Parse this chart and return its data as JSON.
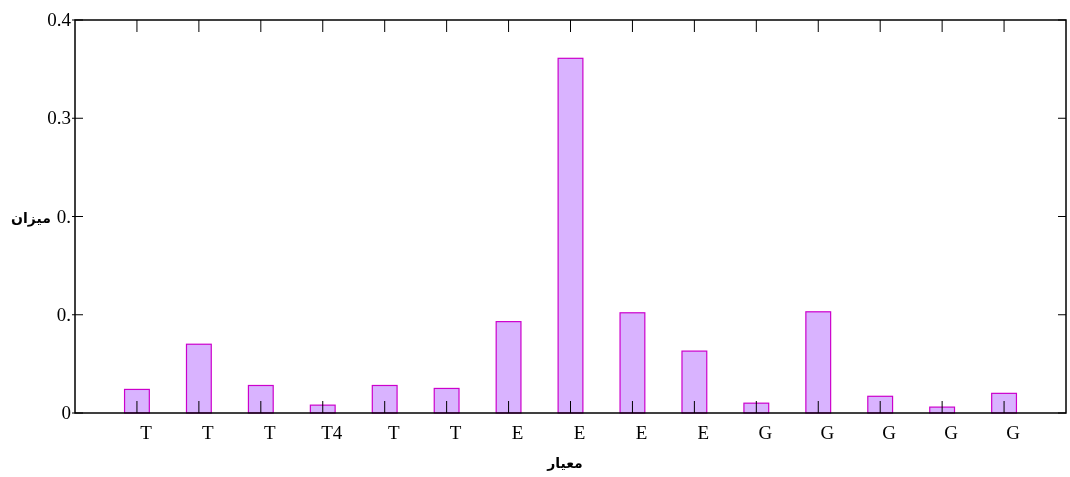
{
  "chart_data": {
    "type": "bar",
    "xlabel": "معیار",
    "ylabel": "میزان",
    "categories": [
      "T",
      "T",
      "T",
      "T4",
      "T",
      "T",
      "E",
      "E",
      "E",
      "E",
      "G",
      "G",
      "G",
      "G",
      "G"
    ],
    "values": [
      0.024,
      0.07,
      0.028,
      0.008,
      0.028,
      0.025,
      0.093,
      0.361,
      0.102,
      0.063,
      0.01,
      0.103,
      0.017,
      0.006,
      0.02
    ],
    "color": "#d9b3ff",
    "ylim": [
      0,
      0.4
    ],
    "yticks": [
      0,
      {
        "value": 0.1,
        "label": "0."
      },
      {
        "value": 0.2,
        "label": "0."
      },
      0.3,
      0.4
    ]
  }
}
